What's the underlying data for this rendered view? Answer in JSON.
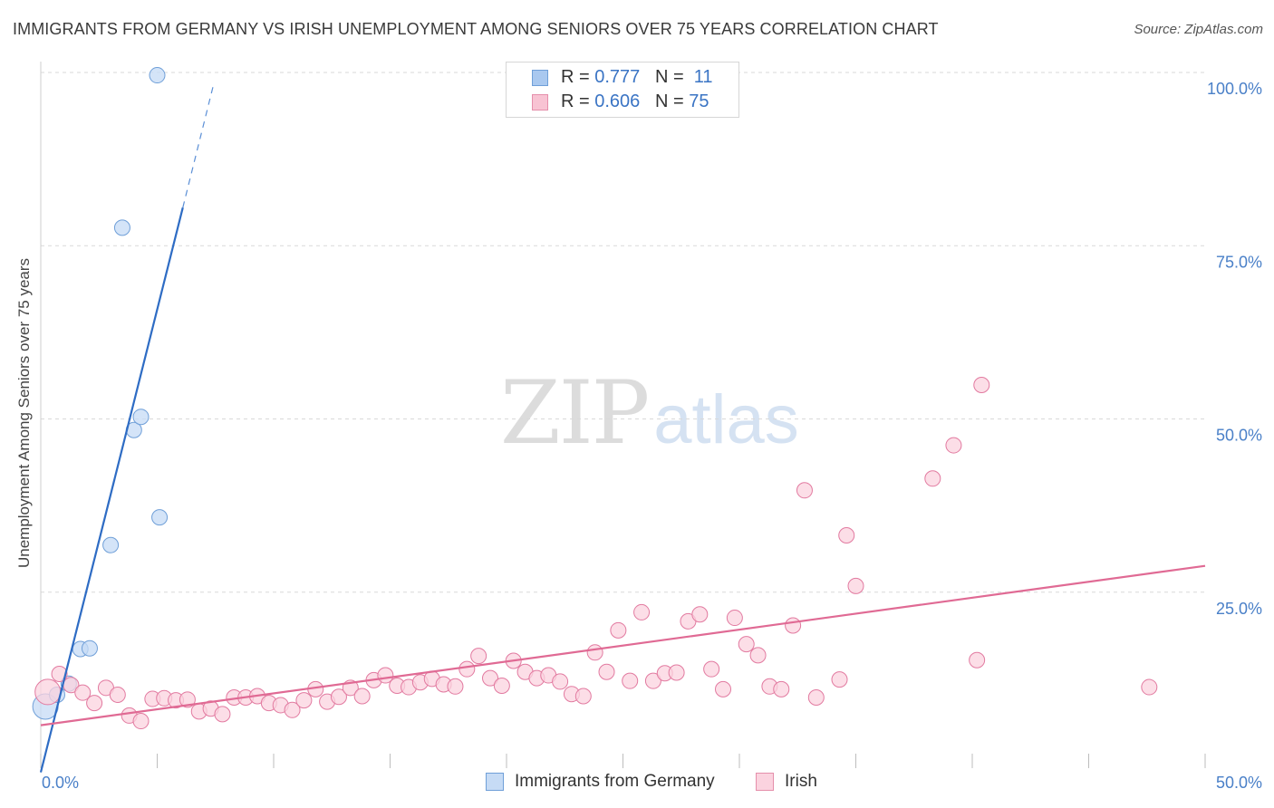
{
  "title": "IMMIGRANTS FROM GERMANY VS IRISH UNEMPLOYMENT AMONG SENIORS OVER 75 YEARS CORRELATION CHART",
  "source": "Source: ZipAtlas.com",
  "watermark": {
    "zip": "ZIP",
    "atlas": "atlas"
  },
  "legend": {
    "rows": [
      {
        "r_label": "R = ",
        "r_value": "0.777",
        "n_label": "N = ",
        "n_value": "11",
        "color": "#a9c8ef",
        "border": "#6f9fd8"
      },
      {
        "r_label": "R = ",
        "r_value": "0.606",
        "n_label": "N = ",
        "n_value": "75",
        "color": "#f8c3d3",
        "border": "#e58fab"
      }
    ]
  },
  "bottom_legend": [
    {
      "label": "Immigrants from Germany",
      "color": "#c6dbf5",
      "border": "#6f9fd8"
    },
    {
      "label": "Irish",
      "color": "#fbd3df",
      "border": "#e58fab"
    }
  ],
  "chart_data": {
    "type": "scatter",
    "title": "IMMIGRANTS FROM GERMANY VS IRISH UNEMPLOYMENT AMONG SENIORS OVER 75 YEARS CORRELATION CHART",
    "xlabel": "",
    "ylabel": "Unemployment Among Seniors over 75 years",
    "xlim": [
      0,
      50
    ],
    "ylim": [
      0,
      100
    ],
    "x_tick_labels": [
      "0.0%",
      "50.0%"
    ],
    "y_tick_labels": [
      "25.0%",
      "50.0%",
      "75.0%",
      "100.0%"
    ],
    "y_ticks": [
      25,
      50,
      75,
      100
    ],
    "grid": true,
    "legend_position": "top-center",
    "series": [
      {
        "name": "Immigrants from Germany",
        "color": "#6f9fd8",
        "fill": "#c6dbf5",
        "trend": {
          "x0": 0,
          "y0": -1,
          "x1": 6.1,
          "y1": 80.5,
          "dash_to_x": 7.4,
          "dash_to_y": 98
        },
        "points": [
          [
            0.2,
            8.5
          ],
          [
            0.7,
            10.2
          ],
          [
            1.2,
            11.8
          ],
          [
            1.7,
            16.8
          ],
          [
            2.1,
            16.9
          ],
          [
            3.0,
            31.8
          ],
          [
            3.5,
            77.6
          ],
          [
            4.0,
            48.4
          ],
          [
            4.3,
            50.3
          ],
          [
            5.0,
            99.6
          ],
          [
            5.1,
            35.8
          ]
        ]
      },
      {
        "name": "Irish",
        "color": "#e27aa0",
        "fill": "#fbd3df",
        "trend": {
          "x0": 0,
          "y0": 5.8,
          "x1": 50,
          "y1": 28.8
        },
        "points": [
          [
            0.3,
            10.6
          ],
          [
            0.8,
            13.2
          ],
          [
            1.3,
            11.6
          ],
          [
            1.8,
            10.5
          ],
          [
            2.3,
            9.0
          ],
          [
            2.8,
            11.2
          ],
          [
            3.3,
            10.2
          ],
          [
            3.8,
            7.2
          ],
          [
            4.3,
            6.4
          ],
          [
            4.8,
            9.6
          ],
          [
            5.3,
            9.7
          ],
          [
            5.8,
            9.4
          ],
          [
            6.3,
            9.5
          ],
          [
            6.8,
            7.8
          ],
          [
            7.3,
            8.2
          ],
          [
            7.8,
            7.4
          ],
          [
            8.3,
            9.8
          ],
          [
            8.8,
            9.8
          ],
          [
            9.3,
            10.0
          ],
          [
            9.8,
            9.0
          ],
          [
            10.3,
            8.7
          ],
          [
            10.8,
            8.0
          ],
          [
            11.3,
            9.4
          ],
          [
            11.8,
            11.0
          ],
          [
            12.3,
            9.2
          ],
          [
            12.8,
            9.9
          ],
          [
            13.3,
            11.2
          ],
          [
            13.8,
            10.0
          ],
          [
            14.3,
            12.3
          ],
          [
            14.8,
            13.0
          ],
          [
            15.3,
            11.5
          ],
          [
            15.8,
            11.3
          ],
          [
            16.3,
            12.0
          ],
          [
            16.8,
            12.5
          ],
          [
            17.3,
            11.7
          ],
          [
            17.8,
            11.4
          ],
          [
            18.3,
            13.9
          ],
          [
            18.8,
            15.8
          ],
          [
            19.3,
            12.6
          ],
          [
            19.8,
            11.5
          ],
          [
            20.3,
            15.1
          ],
          [
            20.8,
            13.5
          ],
          [
            21.3,
            12.6
          ],
          [
            21.8,
            13.0
          ],
          [
            22.3,
            12.1
          ],
          [
            22.8,
            10.3
          ],
          [
            23.3,
            10.0
          ],
          [
            23.8,
            16.3
          ],
          [
            24.3,
            13.5
          ],
          [
            24.8,
            19.5
          ],
          [
            25.3,
            12.2
          ],
          [
            25.8,
            22.1
          ],
          [
            26.3,
            12.2
          ],
          [
            26.8,
            13.3
          ],
          [
            27.3,
            13.4
          ],
          [
            27.8,
            20.8
          ],
          [
            28.3,
            21.8
          ],
          [
            28.8,
            13.9
          ],
          [
            29.3,
            11.0
          ],
          [
            29.8,
            21.3
          ],
          [
            30.3,
            17.5
          ],
          [
            30.8,
            15.9
          ],
          [
            31.3,
            11.4
          ],
          [
            31.8,
            11.0
          ],
          [
            32.3,
            20.2
          ],
          [
            32.8,
            39.7
          ],
          [
            33.3,
            9.8
          ],
          [
            34.3,
            12.4
          ],
          [
            34.6,
            33.2
          ],
          [
            35.0,
            25.9
          ],
          [
            38.3,
            41.4
          ],
          [
            39.2,
            46.2
          ],
          [
            40.2,
            15.2
          ],
          [
            40.4,
            54.9
          ],
          [
            47.6,
            11.3
          ]
        ]
      }
    ]
  }
}
